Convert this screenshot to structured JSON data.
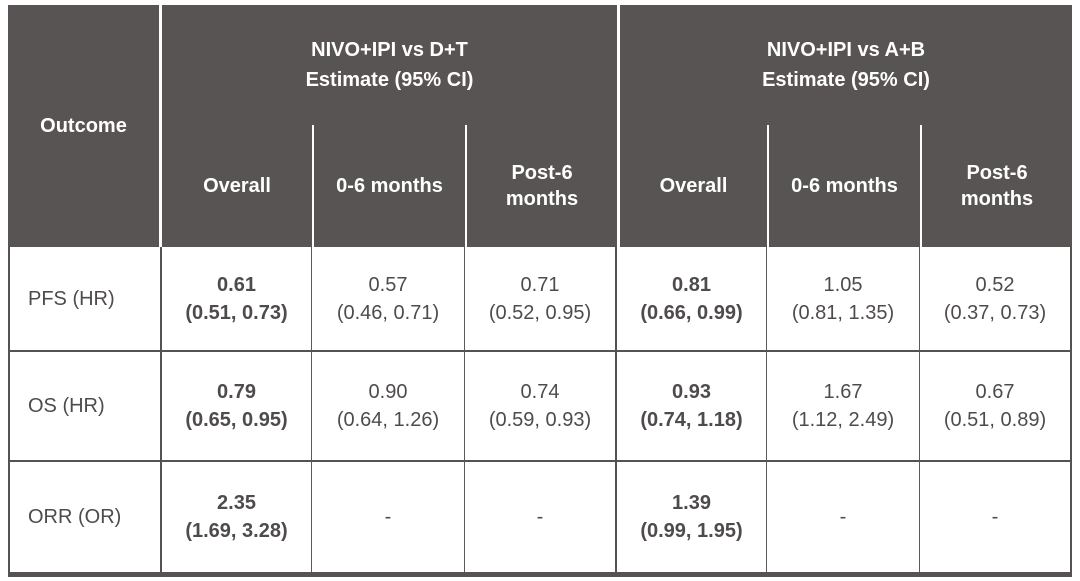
{
  "table": {
    "outcome_header": "Outcome",
    "groups": [
      {
        "title": "NIVO+IPI vs D+T",
        "subtitle": "Estimate (95% CI)",
        "subcols": [
          "Overall",
          "0-6 months",
          "Post-6 months"
        ]
      },
      {
        "title": "NIVO+IPI vs A+B",
        "subtitle": "Estimate (95% CI)",
        "subcols": [
          "Overall",
          "0-6 months",
          "Post-6 months"
        ]
      }
    ],
    "rows": [
      {
        "outcome": "PFS (HR)",
        "cells": [
          {
            "estimate": "0.61",
            "ci": "(0.51, 0.73)"
          },
          {
            "estimate": "0.57",
            "ci": "(0.46, 0.71)"
          },
          {
            "estimate": "0.71",
            "ci": "(0.52, 0.95)"
          },
          {
            "estimate": "0.81",
            "ci": "(0.66, 0.99)"
          },
          {
            "estimate": "1.05",
            "ci": "(0.81, 1.35)"
          },
          {
            "estimate": "0.52",
            "ci": "(0.37, 0.73)"
          }
        ]
      },
      {
        "outcome": "OS (HR)",
        "cells": [
          {
            "estimate": "0.79",
            "ci": "(0.65, 0.95)"
          },
          {
            "estimate": "0.90",
            "ci": "(0.64, 1.26)"
          },
          {
            "estimate": "0.74",
            "ci": "(0.59, 0.93)"
          },
          {
            "estimate": "0.93",
            "ci": "(0.74, 1.18)"
          },
          {
            "estimate": "1.67",
            "ci": "(1.12, 2.49)"
          },
          {
            "estimate": "0.67",
            "ci": "(0.51, 0.89)"
          }
        ]
      },
      {
        "outcome": "ORR (OR)",
        "cells": [
          {
            "estimate": "2.35",
            "ci": "(1.69, 3.28)"
          },
          {
            "estimate": "-",
            "ci": ""
          },
          {
            "estimate": "-",
            "ci": ""
          },
          {
            "estimate": "1.39",
            "ci": "(0.99, 1.95)"
          },
          {
            "estimate": "-",
            "ci": ""
          },
          {
            "estimate": "-",
            "ci": ""
          }
        ]
      }
    ],
    "colors": {
      "header_bg": "#595454",
      "header_text": "#ffffff",
      "body_text": "#4f4b4b",
      "border": "#575252",
      "divider": "#ffffff"
    }
  },
  "chart_data": {
    "type": "table",
    "column_groups": [
      "NIVO+IPI vs D+T Estimate (95% CI)",
      "NIVO+IPI vs A+B Estimate (95% CI)"
    ],
    "columns": [
      "Outcome",
      "NIVO+IPI vs D+T | Overall",
      "NIVO+IPI vs D+T | 0-6 months",
      "NIVO+IPI vs D+T | Post-6 months",
      "NIVO+IPI vs A+B | Overall",
      "NIVO+IPI vs A+B | 0-6 months",
      "NIVO+IPI vs A+B | Post-6 months"
    ],
    "rows": [
      [
        "PFS (HR)",
        "0.61 (0.51, 0.73)",
        "0.57 (0.46, 0.71)",
        "0.71 (0.52, 0.95)",
        "0.81 (0.66, 0.99)",
        "1.05 (0.81, 1.35)",
        "0.52 (0.37, 0.73)"
      ],
      [
        "OS (HR)",
        "0.79 (0.65, 0.95)",
        "0.90 (0.64, 1.26)",
        "0.74 (0.59, 0.93)",
        "0.93 (0.74, 1.18)",
        "1.67 (1.12, 2.49)",
        "0.67 (0.51, 0.89)"
      ],
      [
        "ORR (OR)",
        "2.35 (1.69, 3.28)",
        "-",
        "-",
        "1.39 (0.99, 1.95)",
        "-",
        "-"
      ]
    ]
  }
}
